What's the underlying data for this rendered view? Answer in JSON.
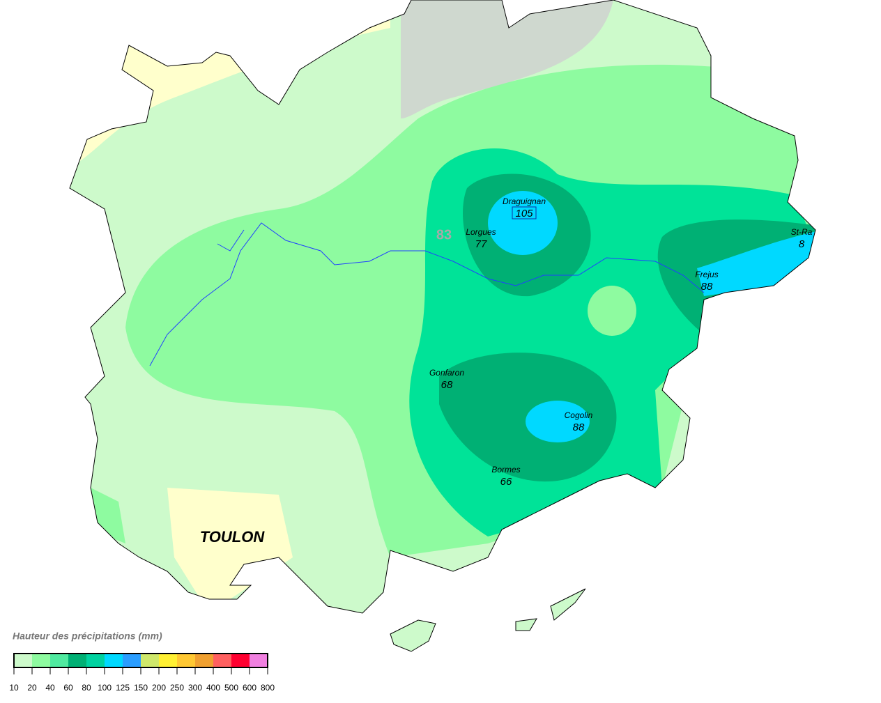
{
  "map": {
    "region_label": "83",
    "city": "TOULON",
    "stations": [
      {
        "name": "Draguignan",
        "value": 105
      },
      {
        "name": "Lorgues",
        "value": 77
      },
      {
        "name": "St-Ra",
        "value": 8
      },
      {
        "name": "Frejus",
        "value": 88
      },
      {
        "name": "Gonfaron",
        "value": 68
      },
      {
        "name": "Cogolin",
        "value": 88
      },
      {
        "name": "Bormes",
        "value": 66
      }
    ],
    "legend": {
      "title": "Hauteur des précipitations (mm)",
      "ticks": [
        10,
        20,
        40,
        60,
        80,
        100,
        125,
        150,
        200,
        250,
        300,
        400,
        500,
        600,
        800
      ],
      "colors": [
        "#cdfacb",
        "#8efba0",
        "#50eaa0",
        "#00b074",
        "#00d2a0",
        "#00d9ff",
        "#2a9dff",
        "#cfe86b",
        "#fff033",
        "#ffc833",
        "#f0a030",
        "#ff6060",
        "#ff0030",
        "#f080e0"
      ]
    }
  }
}
